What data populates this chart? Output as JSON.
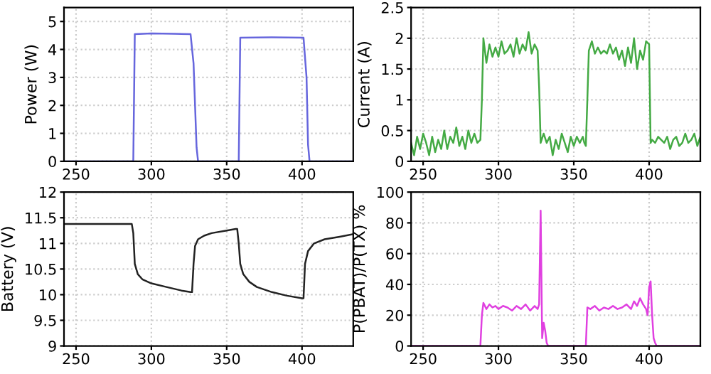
{
  "chart_data": [
    {
      "type": "line",
      "ylabel": "Power (W)",
      "xlim": [
        242,
        434
      ],
      "xticks": [
        250,
        300,
        350,
        400
      ],
      "ylim": [
        0,
        5.5
      ],
      "yticks": [
        0,
        1,
        2,
        3,
        4,
        5
      ],
      "grid": true,
      "series": [
        {
          "color": "#6666dd",
          "x": [
            242,
            288,
            289,
            300,
            315,
            326,
            328,
            330,
            331,
            357,
            358,
            359,
            380,
            401,
            403,
            404,
            405,
            434
          ],
          "values": [
            0,
            0,
            4.55,
            4.57,
            4.56,
            4.55,
            3.5,
            0.5,
            0,
            0,
            0,
            4.42,
            4.43,
            4.42,
            3.0,
            0.6,
            0,
            0
          ]
        }
      ]
    },
    {
      "type": "line",
      "ylabel": "Current (A)",
      "xlim": [
        242,
        434
      ],
      "xticks": [
        250,
        300,
        350,
        400
      ],
      "ylim": [
        0,
        2.5
      ],
      "yticks": [
        0,
        0.5,
        1,
        1.5,
        2,
        2.5
      ],
      "grid": true,
      "series": [
        {
          "color": "#44aa44",
          "x": [
            242,
            244,
            246,
            248,
            250,
            252,
            254,
            256,
            258,
            260,
            262,
            264,
            266,
            268,
            270,
            272,
            274,
            276,
            278,
            280,
            282,
            284,
            286,
            288,
            289,
            290,
            292,
            294,
            296,
            298,
            300,
            302,
            304,
            306,
            308,
            310,
            312,
            314,
            316,
            318,
            320,
            322,
            324,
            326,
            327,
            328,
            330,
            332,
            334,
            336,
            338,
            340,
            342,
            344,
            346,
            348,
            350,
            352,
            354,
            356,
            357,
            358,
            359,
            360,
            362,
            364,
            366,
            368,
            370,
            372,
            374,
            376,
            378,
            380,
            382,
            384,
            386,
            388,
            390,
            392,
            394,
            396,
            398,
            400,
            401,
            402,
            404,
            406,
            408,
            410,
            412,
            414,
            416,
            418,
            420,
            422,
            424,
            426,
            428,
            430,
            432,
            434
          ],
          "values": [
            0.3,
            0.1,
            0.4,
            0.2,
            0.45,
            0.3,
            0.1,
            0.4,
            0.15,
            0.35,
            0.2,
            0.5,
            0.2,
            0.4,
            0.3,
            0.55,
            0.25,
            0.4,
            0.2,
            0.5,
            0.3,
            0.45,
            0.3,
            0.35,
            1.0,
            2.0,
            1.6,
            1.9,
            1.7,
            1.85,
            1.7,
            1.95,
            1.75,
            1.8,
            1.9,
            1.7,
            2.0,
            1.75,
            1.9,
            1.8,
            2.1,
            1.75,
            1.9,
            1.8,
            1.2,
            0.3,
            0.45,
            0.3,
            0.4,
            0.1,
            0.35,
            0.2,
            0.45,
            0.3,
            0.15,
            0.4,
            0.25,
            0.4,
            0.3,
            0.4,
            0.3,
            0.25,
            1.0,
            1.8,
            1.95,
            1.75,
            1.85,
            1.75,
            1.8,
            1.75,
            1.9,
            1.75,
            1.85,
            1.65,
            1.8,
            1.55,
            1.85,
            1.6,
            2.0,
            1.5,
            1.8,
            1.65,
            1.95,
            1.9,
            0.3,
            0.35,
            0.3,
            0.4,
            0.35,
            0.3,
            0.4,
            0.2,
            0.35,
            0.4,
            0.25,
            0.3,
            0.45,
            0.3,
            0.35,
            0.45,
            0.25,
            0.4
          ]
        }
      ]
    },
    {
      "type": "line",
      "ylabel": "Battery (V)",
      "xlim": [
        242,
        434
      ],
      "xticks": [
        250,
        300,
        350,
        400
      ],
      "ylim": [
        9,
        12
      ],
      "yticks": [
        9,
        9.5,
        10,
        10.5,
        11,
        11.5,
        12
      ],
      "grid": true,
      "series": [
        {
          "color": "#222222",
          "x": [
            242,
            270,
            287,
            288,
            289,
            291,
            294,
            300,
            310,
            320,
            326,
            327,
            328,
            329,
            331,
            335,
            340,
            350,
            356,
            357,
            358,
            359,
            361,
            365,
            370,
            380,
            390,
            400,
            401,
            402,
            404,
            408,
            415,
            425,
            434
          ],
          "values": [
            11.38,
            11.38,
            11.38,
            11.2,
            10.6,
            10.4,
            10.3,
            10.22,
            10.15,
            10.08,
            10.05,
            10.05,
            10.6,
            10.95,
            11.08,
            11.15,
            11.2,
            11.25,
            11.28,
            11.28,
            11.0,
            10.6,
            10.4,
            10.25,
            10.15,
            10.05,
            9.98,
            9.93,
            9.93,
            10.6,
            10.85,
            11.0,
            11.08,
            11.13,
            11.18
          ]
        }
      ]
    },
    {
      "type": "line",
      "ylabel": "P(PBAT)/P(TX) %",
      "xlim": [
        242,
        434
      ],
      "xticks": [
        250,
        300,
        350,
        400
      ],
      "ylim": [
        0,
        100
      ],
      "yticks": [
        0,
        20,
        40,
        60,
        80,
        100
      ],
      "grid": true,
      "series": [
        {
          "color": "#e040e0",
          "x": [
            242,
            288,
            289,
            290,
            292,
            294,
            296,
            298,
            300,
            303,
            306,
            309,
            312,
            315,
            318,
            321,
            324,
            326,
            327,
            328,
            329,
            330,
            331,
            332,
            333,
            357,
            358,
            359,
            361,
            364,
            367,
            370,
            373,
            376,
            379,
            382,
            385,
            388,
            390,
            392,
            394,
            396,
            398,
            399,
            400,
            401,
            402,
            403,
            404,
            405,
            434
          ],
          "values": [
            0,
            0,
            20,
            28,
            24,
            27,
            25,
            26,
            24,
            26,
            25,
            23,
            26,
            24,
            27,
            23,
            26,
            24,
            27,
            88,
            5,
            15,
            10,
            2,
            0,
            0,
            0,
            25,
            24,
            26,
            23,
            25,
            24,
            26,
            24,
            25,
            27,
            24,
            29,
            26,
            31,
            27,
            24,
            20,
            38,
            42,
            20,
            5,
            2,
            0,
            0
          ]
        }
      ]
    }
  ]
}
